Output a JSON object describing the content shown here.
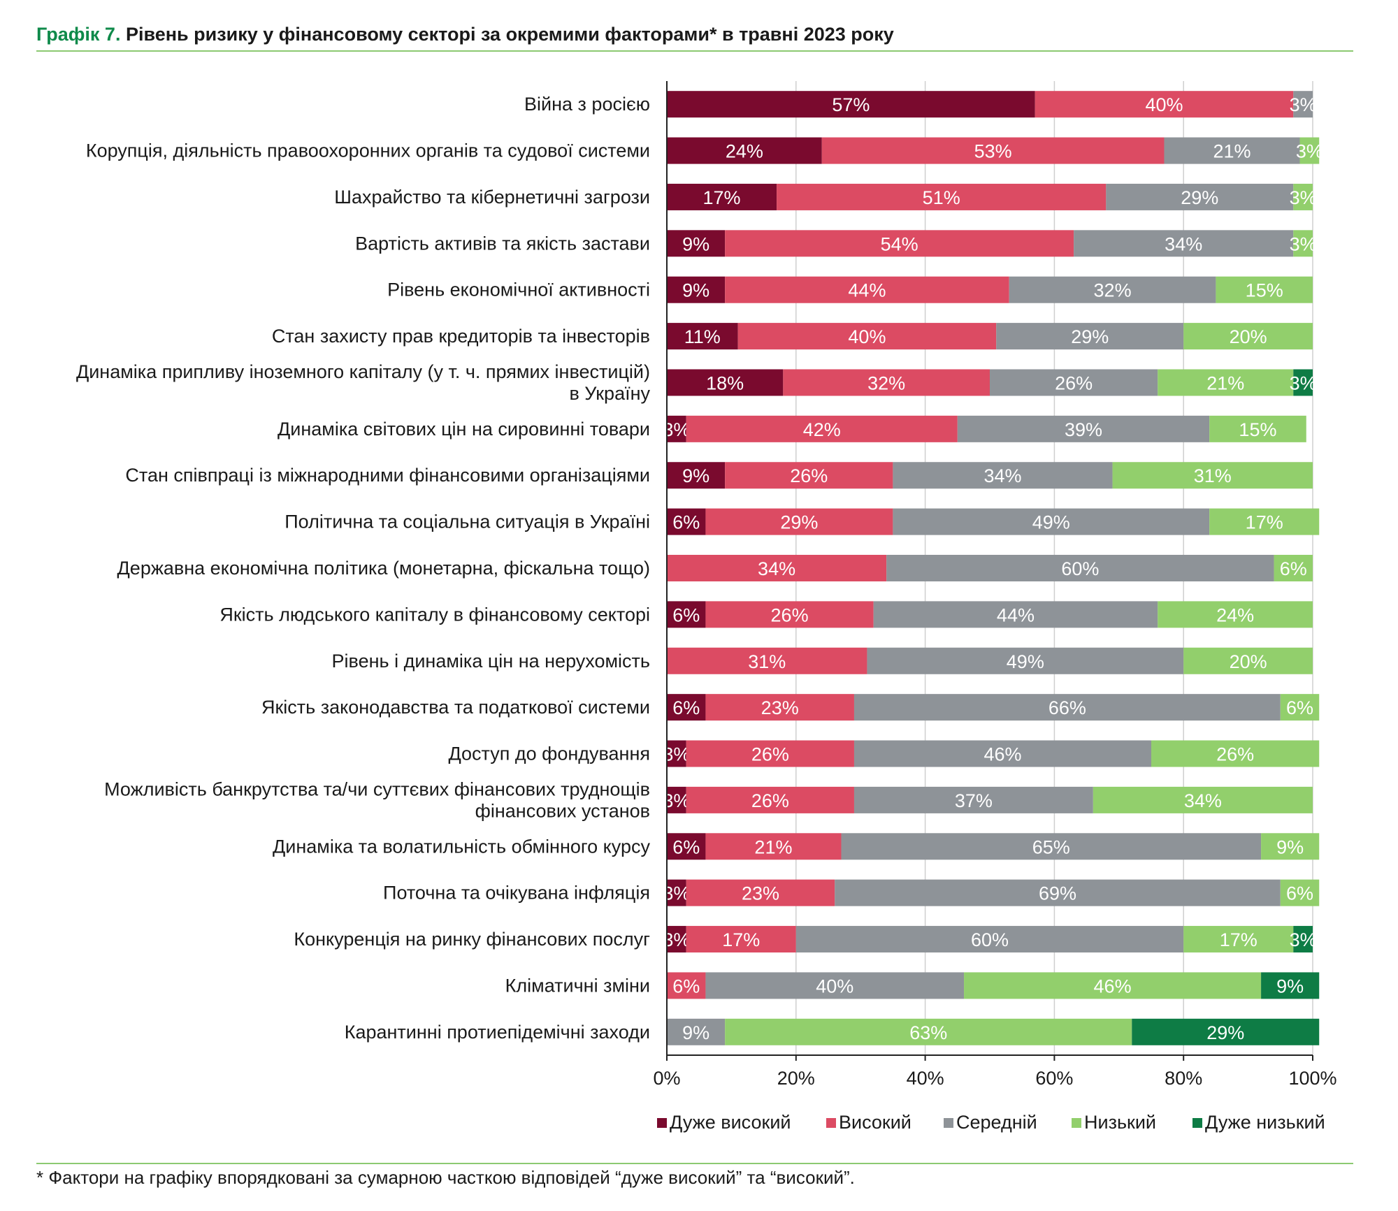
{
  "title": {
    "prefix": "Графік 7.",
    "text": "Рівень ризику у фінансовому секторі за окремими факторами* в травні 2023 року"
  },
  "footnote": "* Фактори на графіку впорядковані за сумарною часткою відповідей “дуже високий” та “високий”.",
  "chart_data": {
    "type": "bar",
    "orientation": "horizontal",
    "stacked": true,
    "xlim": [
      0,
      100
    ],
    "ticks": [
      "0%",
      "20%",
      "40%",
      "60%",
      "80%",
      "100%"
    ],
    "grid": true,
    "legend_position": "bottom",
    "categories": [
      [
        "Війна з росією"
      ],
      [
        "Корупція, діяльність правоохоронних органів та судової системи"
      ],
      [
        "Шахрайство та кібернетичні загрози"
      ],
      [
        "Вартість активів та якість застави"
      ],
      [
        "Рівень економічної активності"
      ],
      [
        "Стан захисту прав кредиторів та інвесторів"
      ],
      [
        "Динаміка припливу іноземного капіталу (у т. ч. прямих інвестицій)",
        "в Україну"
      ],
      [
        "Динаміка світових цін на сировинні товари"
      ],
      [
        "Стан співпраці із міжнародними фінансовими організаціями"
      ],
      [
        "Політична та соціальна ситуація в Україні"
      ],
      [
        "Державна економічна політика (монетарна, фіскальна тощо)"
      ],
      [
        "Якість людського капіталу в фінансовому секторі"
      ],
      [
        "Рівень і динаміка цін на нерухомість"
      ],
      [
        "Якість законодавства та податкової системи"
      ],
      [
        "Доступ до фондування"
      ],
      [
        "Можливість банкрутства та/чи суттєвих фінансових труднощів",
        "фінансових установ"
      ],
      [
        "Динаміка та волатильність обмінного курсу"
      ],
      [
        "Поточна та очікувана інфляція"
      ],
      [
        "Конкуренція на ринку фінансових послуг"
      ],
      [
        "Кліматичні зміни"
      ],
      [
        "Карантинні протиепідемічні заходи"
      ]
    ],
    "series": [
      {
        "name": "Дуже високий",
        "color": "#7a0a2e",
        "values": [
          57,
          24,
          17,
          9,
          9,
          11,
          18,
          3,
          9,
          6,
          0,
          6,
          0,
          6,
          3,
          3,
          6,
          3,
          3,
          0,
          0
        ]
      },
      {
        "name": "Високий",
        "color": "#dc4b63",
        "values": [
          40,
          53,
          51,
          54,
          44,
          40,
          32,
          42,
          26,
          29,
          34,
          26,
          31,
          23,
          26,
          26,
          21,
          23,
          17,
          6,
          0
        ]
      },
      {
        "name": "Середній",
        "color": "#8e9398",
        "values": [
          3,
          21,
          29,
          34,
          32,
          29,
          26,
          39,
          34,
          49,
          60,
          44,
          49,
          66,
          46,
          37,
          65,
          69,
          60,
          40,
          9
        ]
      },
      {
        "name": "Низький",
        "color": "#92cf6c",
        "values": [
          0,
          3,
          3,
          3,
          15,
          20,
          21,
          15,
          31,
          17,
          6,
          24,
          20,
          6,
          26,
          34,
          9,
          6,
          17,
          46,
          63
        ]
      },
      {
        "name": "Дуже низький",
        "color": "#0e7c45",
        "values": [
          0,
          0,
          0,
          0,
          0,
          0,
          3,
          0,
          0,
          0,
          0,
          0,
          0,
          0,
          0,
          0,
          0,
          0,
          3,
          9,
          29
        ]
      }
    ]
  }
}
